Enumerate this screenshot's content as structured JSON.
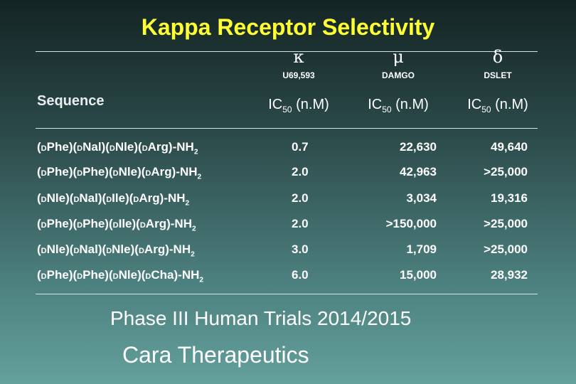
{
  "title": "Kappa Receptor Selectivity",
  "table": {
    "columns": [
      {
        "symbol": "κ",
        "ligand": "U69,593",
        "measure": {
          "text": "IC",
          "sub": "50",
          "unit": "(n.M)"
        }
      },
      {
        "symbol": "μ",
        "ligand": "DAMGO",
        "measure": {
          "text": "IC",
          "sub": "50",
          "unit": "(n.M)"
        }
      },
      {
        "symbol": "δ",
        "ligand": "DSLET",
        "measure": {
          "text": "IC",
          "sub": "50",
          "unit": "(n.M)"
        }
      }
    ],
    "sequence_header": "Sequence",
    "rows": [
      {
        "sequence": {
          "residues": [
            {
              "d": "D",
              "name": "Phe"
            },
            {
              "d": "D",
              "name": "Nal"
            },
            {
              "d": "D",
              "name": "Nle"
            },
            {
              "d": "D",
              "name": "Arg"
            }
          ],
          "terminus": "-NH",
          "terminus_sub": "2"
        },
        "values": [
          "0.7",
          "22,630",
          "49,640"
        ]
      },
      {
        "sequence": {
          "residues": [
            {
              "d": "D",
              "name": "Phe"
            },
            {
              "d": "D",
              "name": "Phe"
            },
            {
              "d": "D",
              "name": "Nle"
            },
            {
              "d": "D",
              "name": "Arg"
            }
          ],
          "terminus": "-NH",
          "terminus_sub": "2"
        },
        "values": [
          "2.0",
          "42,963",
          ">25,000"
        ]
      },
      {
        "sequence": {
          "residues": [
            {
              "d": "D",
              "name": "Nle"
            },
            {
              "d": "D",
              "name": "Nal"
            },
            {
              "d": "D",
              "name": "Ile"
            },
            {
              "d": "D",
              "name": "Arg"
            }
          ],
          "terminus": "-NH",
          "terminus_sub": "2"
        },
        "values": [
          "2.0",
          "3,034",
          "19,316"
        ]
      },
      {
        "sequence": {
          "residues": [
            {
              "d": "D",
              "name": "Phe"
            },
            {
              "d": "D",
              "name": "Phe"
            },
            {
              "d": "D",
              "name": "Ile"
            },
            {
              "d": "D",
              "name": "Arg"
            }
          ],
          "terminus": "-NH",
          "terminus_sub": "2"
        },
        "values": [
          "2.0",
          ">150,000",
          ">25,000"
        ]
      },
      {
        "sequence": {
          "residues": [
            {
              "d": "D",
              "name": "Nle"
            },
            {
              "d": "D",
              "name": "Nal"
            },
            {
              "d": "D",
              "name": "Nle"
            },
            {
              "d": "D",
              "name": "Arg"
            }
          ],
          "terminus": "-NH",
          "terminus_sub": "2"
        },
        "values": [
          "3.0",
          "1,709",
          ">25,000"
        ]
      },
      {
        "sequence": {
          "residues": [
            {
              "d": "D",
              "name": "Phe"
            },
            {
              "d": "D",
              "name": "Phe"
            },
            {
              "d": "D",
              "name": "Nle"
            },
            {
              "d": "D",
              "name": "Cha"
            }
          ],
          "terminus": "-NH",
          "terminus_sub": "2"
        },
        "values": [
          "6.0",
          "15,000",
          "28,932"
        ]
      }
    ]
  },
  "footer": {
    "line1": "Phase III Human Trials 2014/2015",
    "line2": "Cara Therapeutics"
  }
}
